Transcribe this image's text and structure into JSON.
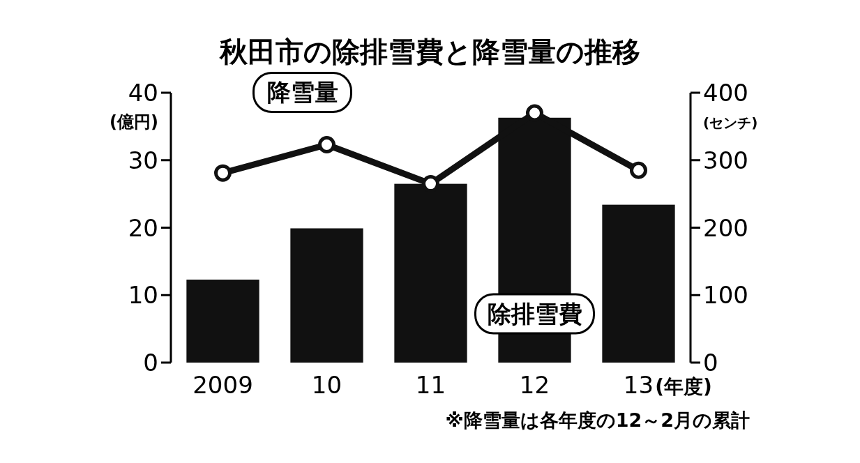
{
  "chart_data": {
    "type": "bar",
    "title": "秋田市の除排雪費と降雪量の推移",
    "categories": [
      "2009",
      "10",
      "11",
      "12",
      "13"
    ],
    "xlabel": "(年度)",
    "ylabel": "(億円)",
    "y2label": "(センチ)",
    "series": [
      {
        "name": "除排雪費",
        "color": "#111111",
        "values": [
          12.3,
          19.9,
          26.5,
          36.3,
          23.4
        ]
      },
      {
        "name": "降雪量",
        "type": "line",
        "axis": "y2",
        "color": "#111111",
        "marker": "circle",
        "values": [
          281,
          323,
          265,
          370,
          285
        ]
      }
    ],
    "ylim": [
      0,
      40
    ],
    "yticks": [
      0,
      10,
      20,
      30,
      40
    ],
    "y2lim": [
      0,
      400
    ],
    "y2ticks": [
      0,
      100,
      200,
      300,
      400
    ],
    "grid": false,
    "annotations": [
      "※降雪量は各年度の12～2月の累計"
    ]
  }
}
